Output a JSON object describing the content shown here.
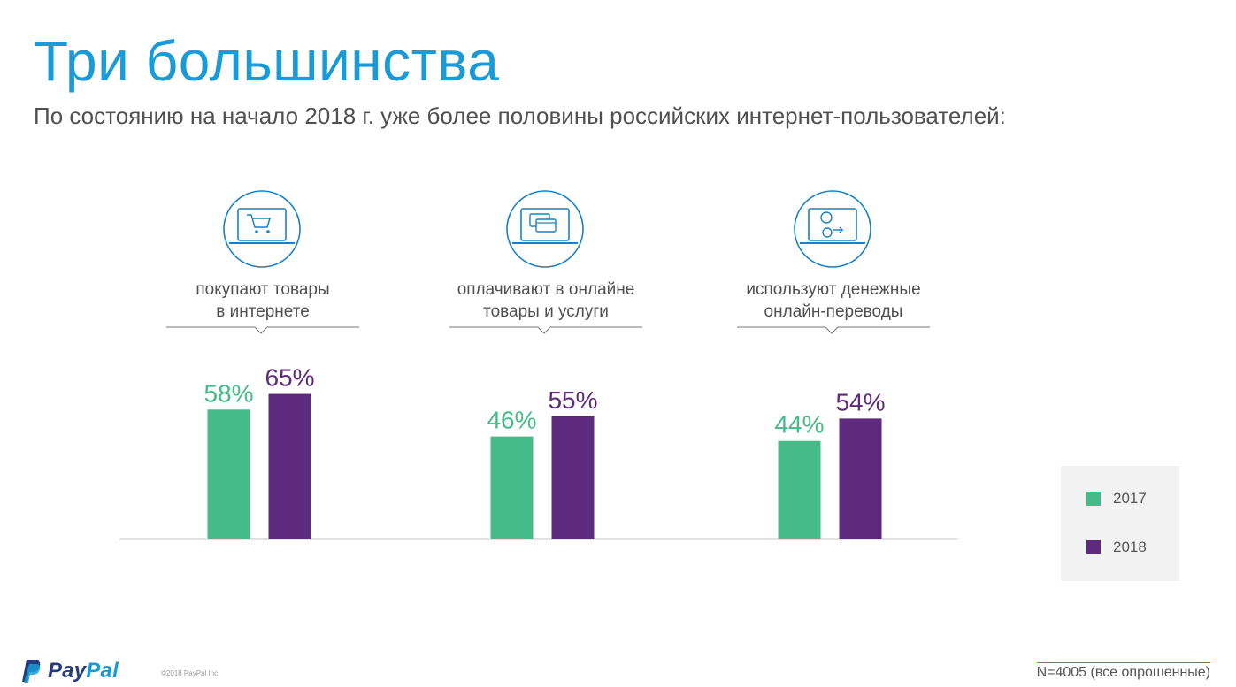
{
  "header": {
    "title": "Три большинства",
    "subtitle": "По состоянию на начало 2018 г. уже более половины российских интернет-пользователей:"
  },
  "chart_data": {
    "type": "bar",
    "categories": [
      {
        "line1": "покупают товары",
        "line2": "в интернете",
        "icon": "cart-icon"
      },
      {
        "line1": "оплачивают в онлайне",
        "line2": "товары и услуги",
        "icon": "cards-icon"
      },
      {
        "line1": "используют денежные",
        "line2": "онлайн-переводы",
        "icon": "transfer-icon"
      }
    ],
    "series": [
      {
        "name": "2017",
        "values": [
          58,
          46,
          44
        ],
        "labels": [
          "58%",
          "46%",
          "44%"
        ],
        "color": "#45bb8a"
      },
      {
        "name": "2018",
        "values": [
          65,
          55,
          54
        ],
        "labels": [
          "65%",
          "55%",
          "54%"
        ],
        "color": "#5e2a7e"
      }
    ],
    "ylim": [
      0,
      100
    ],
    "legend": "right",
    "grid": false
  },
  "legend": {
    "items": [
      {
        "label": "2017",
        "color": "#45bb8a"
      },
      {
        "label": "2018",
        "color": "#5e2a7e"
      }
    ]
  },
  "footer": {
    "logo_pay": "Pay",
    "logo_pal": "Pal",
    "copyright": "©2018 PayPal Inc.",
    "note": "N=4005 (все опрошенные)"
  },
  "colors": {
    "accent": "#1a9ad6",
    "icon_stroke": "#1a82c4",
    "series_2017": "#45bb8a",
    "series_2018": "#5e2a7e"
  }
}
